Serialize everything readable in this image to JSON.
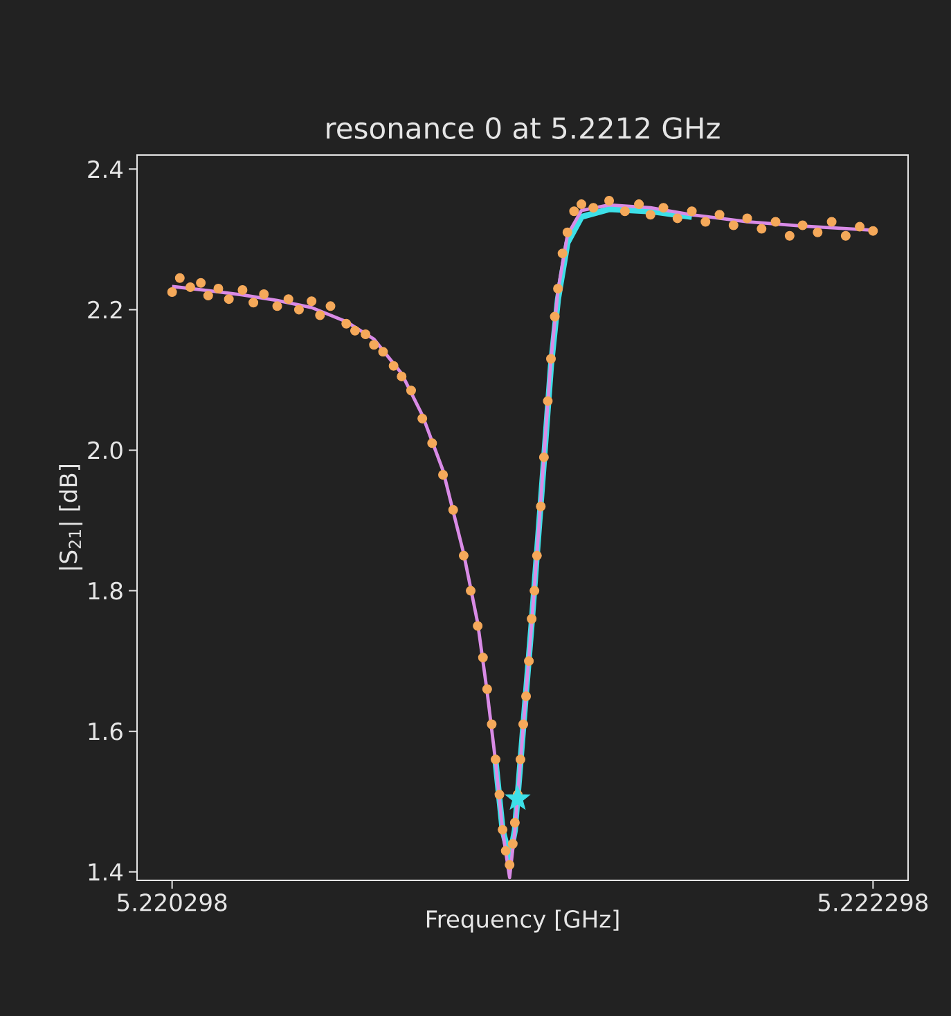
{
  "chart_data": {
    "type": "scatter",
    "title": "resonance 0 at 5.2212 GHz",
    "xlabel": "Frequency [GHz]",
    "ylabel": "|S$_{21}$| [dB]",
    "xlim": [
      5.220198,
      5.222398
    ],
    "ylim": [
      1.388,
      2.42
    ],
    "xticks": [
      5.220298,
      5.222298
    ],
    "yticks": [
      1.4,
      1.6,
      1.8,
      {
        "value": 2.0,
        "label": "2.0"
      },
      2.2,
      2.4
    ],
    "series": [
      {
        "type": "scatter",
        "marker": "circle",
        "color": "#f5a95a",
        "x": [
          5.220298,
          5.22032,
          5.22035,
          5.22038,
          5.220401,
          5.22043,
          5.22046,
          5.220499,
          5.22053,
          5.22056,
          5.220598,
          5.22063,
          5.22066,
          5.220696,
          5.22072,
          5.22075,
          5.220795,
          5.22082,
          5.22085,
          5.220874,
          5.2209,
          5.22093,
          5.220953,
          5.22098,
          5.221012,
          5.22104,
          5.221071,
          5.2211,
          5.22113,
          5.22115,
          5.22117,
          5.221185,
          5.221197,
          5.22121,
          5.221221,
          5.221232,
          5.221241,
          5.22125,
          5.221261,
          5.22127,
          5.221276,
          5.221284,
          5.221292,
          5.2213,
          5.221308,
          5.221316,
          5.221324,
          5.221332,
          5.221339,
          5.22135,
          5.221359,
          5.22137,
          5.221379,
          5.22139,
          5.221399,
          5.221412,
          5.221426,
          5.221445,
          5.221466,
          5.2215,
          5.221545,
          5.22159,
          5.22163,
          5.221663,
          5.2217,
          5.22174,
          5.221781,
          5.22182,
          5.22186,
          5.2219,
          5.221939,
          5.22198,
          5.22202,
          5.22206,
          5.222097,
          5.22214,
          5.22218,
          5.22222,
          5.22226,
          5.222298
        ],
        "values": [
          2.225,
          2.245,
          2.232,
          2.238,
          2.22,
          2.23,
          2.215,
          2.228,
          2.21,
          2.222,
          2.205,
          2.215,
          2.2,
          2.212,
          2.192,
          2.205,
          2.18,
          2.17,
          2.165,
          2.15,
          2.14,
          2.12,
          2.105,
          2.085,
          2.045,
          2.01,
          1.965,
          1.915,
          1.85,
          1.8,
          1.75,
          1.705,
          1.66,
          1.61,
          1.56,
          1.51,
          1.46,
          1.43,
          1.41,
          1.44,
          1.47,
          1.51,
          1.56,
          1.61,
          1.65,
          1.7,
          1.76,
          1.8,
          1.85,
          1.92,
          1.99,
          2.07,
          2.13,
          2.19,
          2.23,
          2.28,
          2.31,
          2.34,
          2.35,
          2.345,
          2.355,
          2.34,
          2.35,
          2.335,
          2.345,
          2.33,
          2.34,
          2.325,
          2.335,
          2.32,
          2.33,
          2.315,
          2.325,
          2.305,
          2.32,
          2.31,
          2.325,
          2.305,
          2.318,
          2.312
        ]
      },
      {
        "type": "line",
        "color": "#3de0e8",
        "x": [
          5.221221,
          5.221241,
          5.221261,
          5.221276,
          5.221292,
          5.221308,
          5.221324,
          5.221339,
          5.221359,
          5.221379,
          5.221399,
          5.221426,
          5.221466,
          5.221545,
          5.221663,
          5.221781
        ],
        "values": [
          1.557,
          1.46,
          1.42,
          1.459,
          1.557,
          1.656,
          1.754,
          1.853,
          1.985,
          2.12,
          2.215,
          2.295,
          2.332,
          2.343,
          2.34,
          2.332
        ]
      },
      {
        "type": "line",
        "color": "#d98be6",
        "x": [
          5.220298,
          5.220401,
          5.220499,
          5.220598,
          5.220696,
          5.220795,
          5.220874,
          5.220953,
          5.221012,
          5.221071,
          5.22113,
          5.22117,
          5.221197,
          5.221221,
          5.221241,
          5.221261,
          5.221276,
          5.221292,
          5.221308,
          5.221324,
          5.221339,
          5.221359,
          5.221379,
          5.221399,
          5.221426,
          5.221466,
          5.221545,
          5.221663,
          5.221781,
          5.221939,
          5.222097,
          5.222298
        ],
        "values": [
          2.233,
          2.227,
          2.221,
          2.213,
          2.203,
          2.183,
          2.158,
          2.109,
          2.05,
          1.971,
          1.853,
          1.754,
          1.656,
          1.557,
          1.459,
          1.392,
          1.459,
          1.557,
          1.656,
          1.754,
          1.853,
          1.991,
          2.128,
          2.227,
          2.306,
          2.341,
          2.349,
          2.345,
          2.335,
          2.325,
          2.319,
          2.313
        ]
      },
      {
        "type": "scatter",
        "marker": "star",
        "color": "#3de0e8",
        "x": [
          5.221284
        ],
        "values": [
          1.504
        ]
      }
    ]
  }
}
